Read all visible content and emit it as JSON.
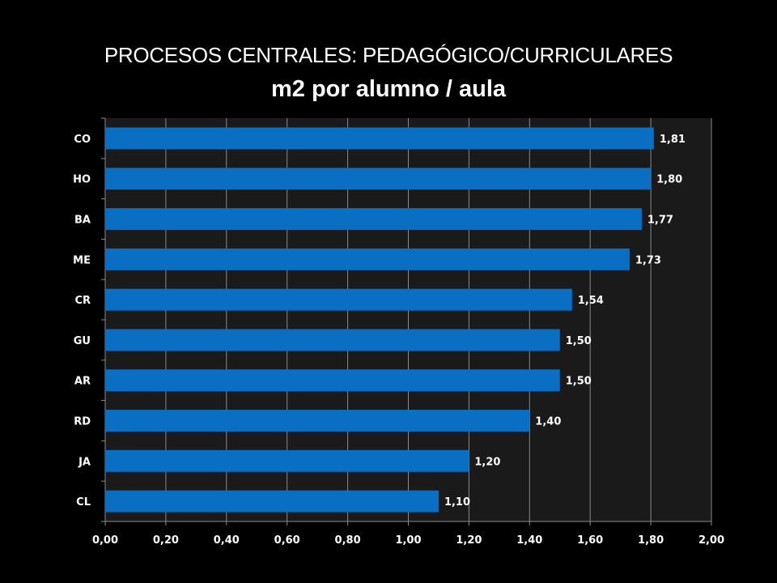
{
  "chart_data": {
    "type": "bar",
    "orientation": "horizontal",
    "title": "PROCESOS CENTRALES: PEDAGÓGICO/CURRICULARES",
    "subtitle": "m2 por alumno / aula",
    "categories": [
      "CO",
      "HO",
      "BA",
      "ME",
      "CR",
      "GU",
      "AR",
      "RD",
      "JA",
      "CL"
    ],
    "values": [
      1.81,
      1.8,
      1.77,
      1.73,
      1.54,
      1.5,
      1.5,
      1.4,
      1.2,
      1.1
    ],
    "value_labels": [
      "1,81",
      "1,80",
      "1,77",
      "1,73",
      "1,54",
      "1,50",
      "1,50",
      "1,40",
      "1,20",
      "1,10"
    ],
    "xlim": [
      0,
      2
    ],
    "x_ticks": [
      0,
      0.2,
      0.4,
      0.6,
      0.8,
      1.0,
      1.2,
      1.4,
      1.6,
      1.8,
      2.0
    ],
    "x_tick_labels": [
      "0,00",
      "0,20",
      "0,40",
      "0,60",
      "0,80",
      "1,00",
      "1,20",
      "1,40",
      "1,60",
      "1,80",
      "2,00"
    ],
    "xlabel": "",
    "ylabel": "",
    "grid": true,
    "legend": "none",
    "colors": {
      "bar": "#0a6fc2",
      "plot_background": "#1a1a1a",
      "page_background": "#000000",
      "gridline": "#8a8a8a",
      "text": "#ffffff"
    }
  }
}
